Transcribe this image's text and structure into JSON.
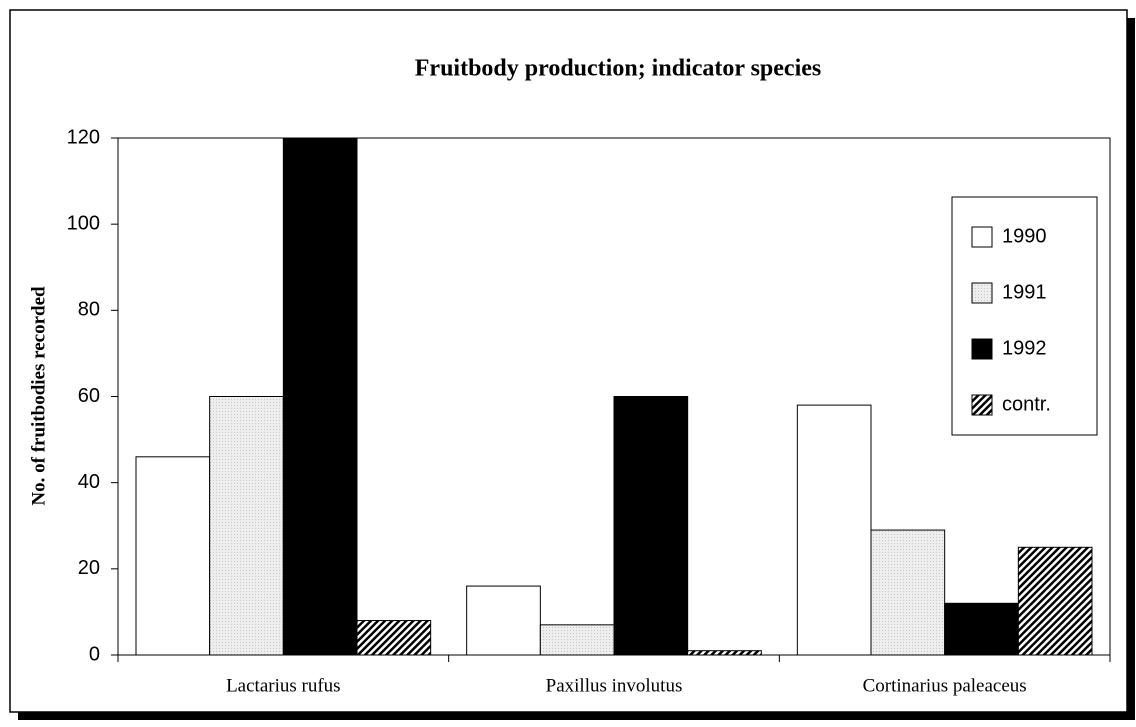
{
  "chart_data": {
    "type": "bar",
    "title": "Fruitbody production; indicator species",
    "y_label": "No. of fruitbodies recorded",
    "categories": [
      "Lactarius rufus",
      "Paxillus involutus",
      "Cortinarius  paleaceus"
    ],
    "series": [
      {
        "name": "1990",
        "color": "#ffffff",
        "values": [
          46,
          16,
          58
        ]
      },
      {
        "name": "1991",
        "color": "#c8c8c8",
        "pattern": "dots",
        "values": [
          60,
          7,
          29
        ]
      },
      {
        "name": "1992",
        "color": "#000000",
        "values": [
          120,
          60,
          12
        ]
      },
      {
        "name": "contr.",
        "color": "#000000",
        "pattern": "hatch",
        "values": [
          8,
          1,
          25
        ]
      }
    ],
    "ylim": [
      0,
      120
    ],
    "yticks": [
      0,
      20,
      40,
      60,
      80,
      100,
      120
    ],
    "grid": false,
    "legend": "right"
  }
}
